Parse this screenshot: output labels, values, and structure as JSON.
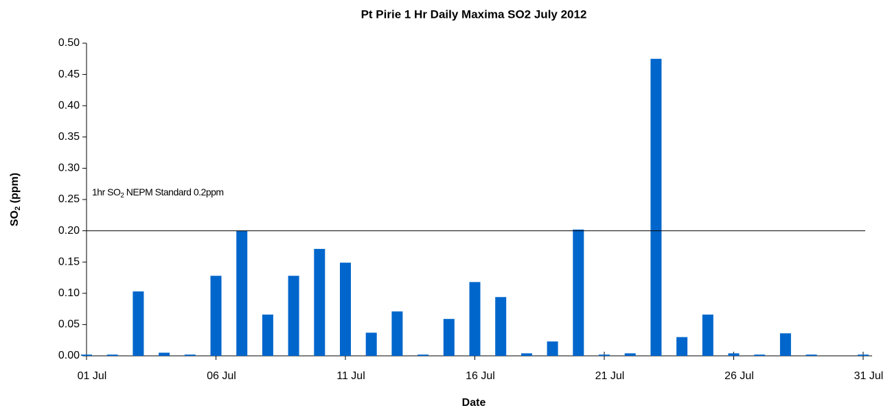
{
  "chart_data": {
    "type": "bar",
    "title": "Pt Pirie 1 Hr Daily Maxima SO2 July 2012",
    "x_label": "Date",
    "y_label": {
      "main": "SO",
      "sub": "2",
      "unit": "  (ppm)"
    },
    "annotation": {
      "text": "1hr SO",
      "sub": "2",
      "rest": " NEPM Standard 0.2ppm"
    },
    "threshold": 0.2,
    "color": "#0066cc",
    "categories": [
      "01 Jul",
      null,
      null,
      null,
      null,
      "06 Jul",
      null,
      null,
      null,
      null,
      "11 Jul",
      null,
      null,
      null,
      null,
      "16 Jul",
      null,
      null,
      null,
      null,
      "21 Jul",
      null,
      null,
      null,
      null,
      "26 Jul",
      null,
      null,
      null,
      null,
      "31 Jul"
    ],
    "values": [
      0.002,
      0.002,
      0.103,
      0.005,
      0.002,
      0.128,
      0.2,
      0.066,
      0.128,
      0.171,
      0.149,
      0.037,
      0.071,
      0.002,
      0.059,
      0.118,
      0.094,
      0.004,
      0.023,
      0.202,
      0.002,
      0.004,
      0.475,
      0.03,
      0.066,
      0.004,
      0.002,
      0.036,
      0.002,
      0,
      0.002
    ],
    "ylim": [
      0,
      0.5
    ],
    "yticks": [
      {
        "value": 0,
        "label": "0.00"
      },
      {
        "value": 0.05,
        "label": "0.05"
      },
      {
        "value": 0.1,
        "label": "0.10"
      },
      {
        "value": 0.15,
        "label": "0.15"
      },
      {
        "value": 0.2,
        "label": "0.20"
      },
      {
        "value": 0.25,
        "label": "0.25"
      },
      {
        "value": 0.3,
        "label": "0.30"
      },
      {
        "value": 0.35,
        "label": "0.35"
      },
      {
        "value": 0.4,
        "label": "0.40"
      },
      {
        "value": 0.45,
        "label": "0.45"
      },
      {
        "value": 0.5,
        "label": "0.50"
      }
    ],
    "grid": false
  }
}
